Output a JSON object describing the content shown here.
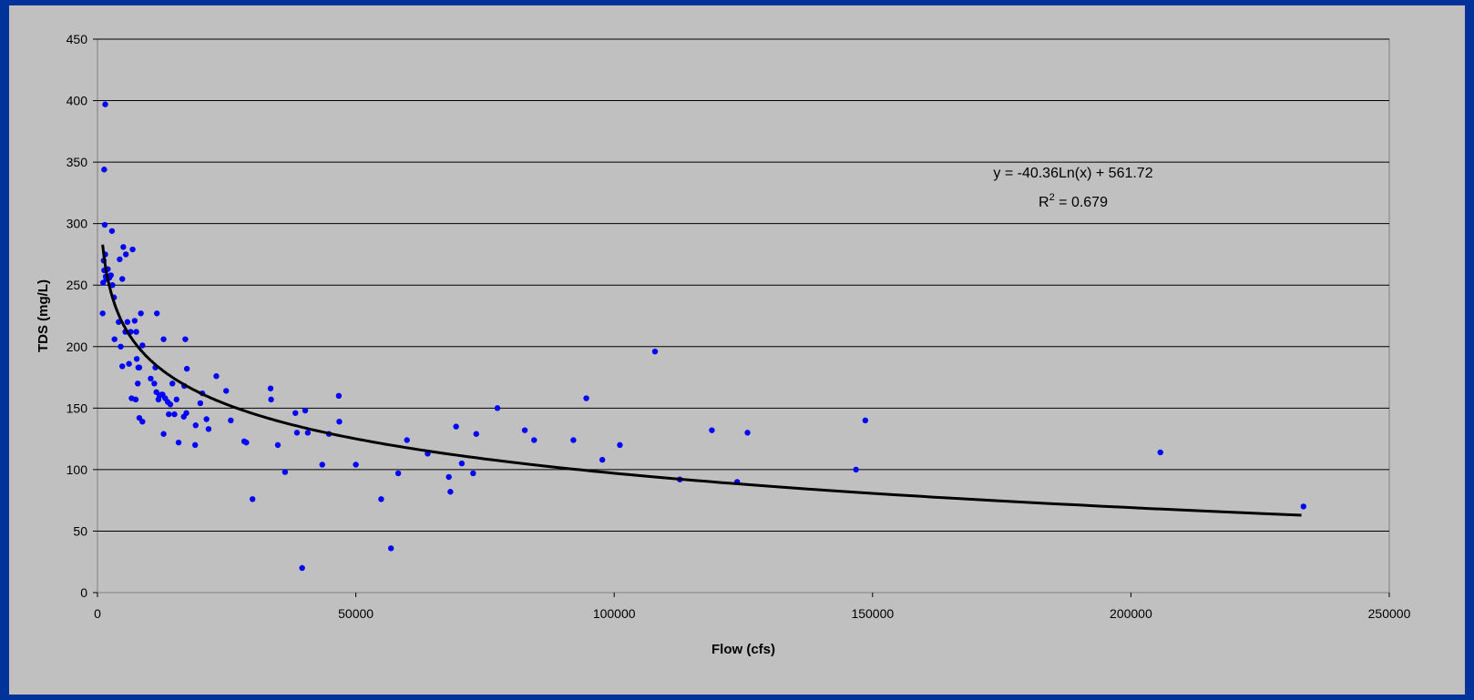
{
  "chart_data": {
    "type": "scatter",
    "title": "",
    "xlabel": "Flow (cfs)",
    "ylabel": "TDS (mg/L)",
    "xlim": [
      0,
      250000
    ],
    "ylim": [
      0,
      450
    ],
    "x_ticks": [
      "0",
      "50000",
      "100000",
      "150000",
      "200000",
      "250000"
    ],
    "y_ticks": [
      "0",
      "50",
      "100",
      "150",
      "200",
      "250",
      "300",
      "350",
      "400",
      "450"
    ],
    "grid": "horizontal",
    "legend": "none",
    "colors": {
      "points": "#0000ff",
      "trendline": "#000000",
      "plot_bg": "#c0c0c0",
      "page_bg": "#003399"
    },
    "trendline": {
      "type": "logarithmic",
      "a": -40.36,
      "b": 561.72,
      "x_range": [
        1000,
        233000
      ],
      "equation_text": "y = -40.36Ln(x) + 561.72",
      "r2_prefix": "R",
      "r2_exp": "2",
      "r2_value": " = 0.679"
    },
    "points": [
      [
        1500,
        397
      ],
      [
        1300,
        344
      ],
      [
        1400,
        299
      ],
      [
        2800,
        294
      ],
      [
        1500,
        275
      ],
      [
        1200,
        270
      ],
      [
        1300,
        262
      ],
      [
        1600,
        257
      ],
      [
        1700,
        255
      ],
      [
        1100,
        252
      ],
      [
        2000,
        263
      ],
      [
        2300,
        256
      ],
      [
        2600,
        258
      ],
      [
        2900,
        250
      ],
      [
        3200,
        240
      ],
      [
        1000,
        227
      ],
      [
        5000,
        281
      ],
      [
        5500,
        275
      ],
      [
        4300,
        271
      ],
      [
        6800,
        279
      ],
      [
        4800,
        255
      ],
      [
        3300,
        206
      ],
      [
        4100,
        220
      ],
      [
        4500,
        200
      ],
      [
        5800,
        220
      ],
      [
        7200,
        221
      ],
      [
        5400,
        212
      ],
      [
        6400,
        212
      ],
      [
        7500,
        212
      ],
      [
        8400,
        227
      ],
      [
        4800,
        184
      ],
      [
        6100,
        186
      ],
      [
        7600,
        190
      ],
      [
        8100,
        183
      ],
      [
        7900,
        183
      ],
      [
        8700,
        201
      ],
      [
        11500,
        227
      ],
      [
        12800,
        206
      ],
      [
        17000,
        206
      ],
      [
        17300,
        182
      ],
      [
        11200,
        183
      ],
      [
        10300,
        174
      ],
      [
        11000,
        170
      ],
      [
        7800,
        170
      ],
      [
        6600,
        158
      ],
      [
        7400,
        157
      ],
      [
        8100,
        142
      ],
      [
        8700,
        139
      ],
      [
        11400,
        163
      ],
      [
        12000,
        160
      ],
      [
        12400,
        161
      ],
      [
        13100,
        158
      ],
      [
        11800,
        157
      ],
      [
        12600,
        161
      ],
      [
        13600,
        155
      ],
      [
        14100,
        153
      ],
      [
        13800,
        145
      ],
      [
        14900,
        145
      ],
      [
        14500,
        170
      ],
      [
        15300,
        157
      ],
      [
        16800,
        168
      ],
      [
        17200,
        146
      ],
      [
        16700,
        143
      ],
      [
        12800,
        129
      ],
      [
        15700,
        122
      ],
      [
        18900,
        120
      ],
      [
        19000,
        136
      ],
      [
        19900,
        154
      ],
      [
        20300,
        162
      ],
      [
        21100,
        141
      ],
      [
        21500,
        133
      ],
      [
        23000,
        176
      ],
      [
        24900,
        164
      ],
      [
        25800,
        140
      ],
      [
        28400,
        123
      ],
      [
        28800,
        122
      ],
      [
        30000,
        76
      ],
      [
        33500,
        166
      ],
      [
        33600,
        157
      ],
      [
        34900,
        120
      ],
      [
        36300,
        98
      ],
      [
        38300,
        146
      ],
      [
        38600,
        130
      ],
      [
        39600,
        20
      ],
      [
        40200,
        148
      ],
      [
        40700,
        130
      ],
      [
        43500,
        104
      ],
      [
        44800,
        129
      ],
      [
        46700,
        160
      ],
      [
        46800,
        139
      ],
      [
        50000,
        104
      ],
      [
        54900,
        76
      ],
      [
        56800,
        36
      ],
      [
        58200,
        97
      ],
      [
        59900,
        124
      ],
      [
        63900,
        113
      ],
      [
        68000,
        94
      ],
      [
        68300,
        82
      ],
      [
        69400,
        135
      ],
      [
        70500,
        105
      ],
      [
        72700,
        97
      ],
      [
        73300,
        129
      ],
      [
        77400,
        150
      ],
      [
        82700,
        132
      ],
      [
        84500,
        124
      ],
      [
        92100,
        124
      ],
      [
        94600,
        158
      ],
      [
        97700,
        108
      ],
      [
        101100,
        120
      ],
      [
        107900,
        196
      ],
      [
        112700,
        92
      ],
      [
        118900,
        132
      ],
      [
        123800,
        90
      ],
      [
        125800,
        130
      ],
      [
        146800,
        100
      ],
      [
        148600,
        140
      ],
      [
        205700,
        114
      ],
      [
        233400,
        70
      ]
    ]
  }
}
